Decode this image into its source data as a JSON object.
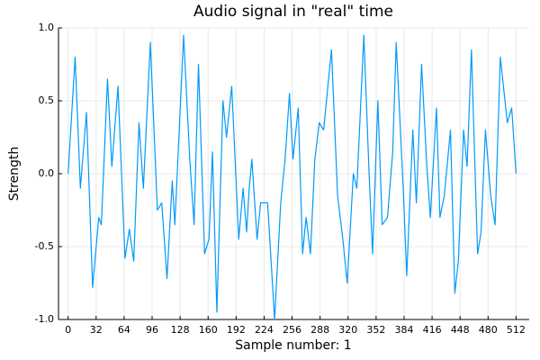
{
  "chart_data": {
    "type": "line",
    "title": "Audio signal in \"real\" time",
    "xlabel": "Sample number:    1",
    "ylabel": "Strength",
    "x": [
      0,
      8,
      14,
      21,
      28,
      35,
      38,
      45,
      50,
      57,
      65,
      70,
      75,
      81,
      86,
      94,
      102,
      107,
      113,
      119,
      122,
      132,
      139,
      144,
      149,
      156,
      161,
      165,
      170,
      177,
      181,
      187,
      195,
      200,
      204,
      207,
      210,
      216,
      220,
      228,
      236,
      243,
      248,
      253,
      257,
      263,
      268,
      272,
      277,
      282,
      287,
      292,
      301,
      308,
      314,
      319,
      326,
      330,
      338,
      344,
      348,
      354,
      359,
      365,
      371,
      375,
      383,
      387,
      394,
      398,
      404,
      410,
      414,
      421,
      425,
      430,
      437,
      442,
      446,
      452,
      456,
      461,
      468,
      472,
      477,
      483,
      488,
      494,
      502,
      507,
      512
    ],
    "values": [
      0,
      0.8,
      -0.1,
      0.42,
      -0.78,
      -0.3,
      -0.35,
      0.65,
      0.05,
      0.6,
      -0.58,
      -0.38,
      -0.6,
      0.35,
      -0.1,
      0.9,
      -0.25,
      -0.2,
      -0.72,
      -0.05,
      -0.35,
      0.95,
      0.1,
      -0.35,
      0.75,
      -0.55,
      -0.45,
      0.15,
      -0.95,
      0.5,
      0.25,
      0.6,
      -0.45,
      -0.1,
      -0.4,
      -0.1,
      0.1,
      -0.45,
      -0.2,
      -0.2,
      -1.0,
      -0.2,
      0.1,
      0.55,
      0.1,
      0.45,
      -0.55,
      -0.3,
      -0.55,
      0.1,
      0.35,
      0.3,
      0.85,
      -0.15,
      -0.45,
      -0.75,
      0.0,
      -0.1,
      0.95,
      0.0,
      -0.55,
      0.5,
      -0.35,
      -0.3,
      0.15,
      0.9,
      -0.1,
      -0.7,
      0.3,
      -0.2,
      0.75,
      0.05,
      -0.3,
      0.45,
      -0.3,
      -0.15,
      0.3,
      -0.82,
      -0.6,
      0.3,
      0.05,
      0.85,
      -0.55,
      -0.4,
      0.3,
      -0.15,
      -0.35,
      0.8,
      0.35,
      0.45,
      0.0
    ],
    "color": "#009af9",
    "xlim": [
      -11,
      527
    ],
    "ylim": [
      -1,
      1
    ],
    "xticks": [
      0,
      32,
      64,
      96,
      128,
      160,
      192,
      224,
      256,
      288,
      320,
      352,
      384,
      416,
      448,
      480,
      512
    ],
    "yticks": [
      {
        "value": -1,
        "label": "-1.0"
      },
      -0.5,
      {
        "value": 0,
        "label": "0.0"
      },
      0.5,
      {
        "value": 1,
        "label": "1.0"
      }
    ],
    "grid": true
  }
}
